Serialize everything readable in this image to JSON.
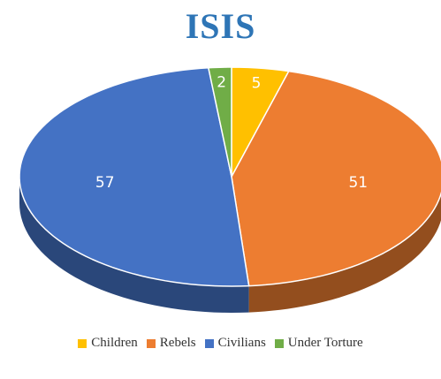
{
  "chart_data": {
    "type": "pie",
    "title": "ISIS",
    "categories": [
      "Children",
      "Rebels",
      "Civilians",
      "Under Torture"
    ],
    "values": [
      5,
      51,
      57,
      2
    ],
    "data_labels": [
      "5",
      "51",
      "57",
      "2"
    ],
    "colors": [
      "#ffc000",
      "#ed7d31",
      "#4472c4",
      "#70ad47"
    ],
    "style": "3d",
    "legend_position": "bottom"
  },
  "legend": {
    "items": [
      {
        "label": "Children",
        "color": "#ffc000"
      },
      {
        "label": "Rebels",
        "color": "#ed7d31"
      },
      {
        "label": "Civilians",
        "color": "#4472c4"
      },
      {
        "label": "Under Torture",
        "color": "#70ad47"
      }
    ]
  }
}
